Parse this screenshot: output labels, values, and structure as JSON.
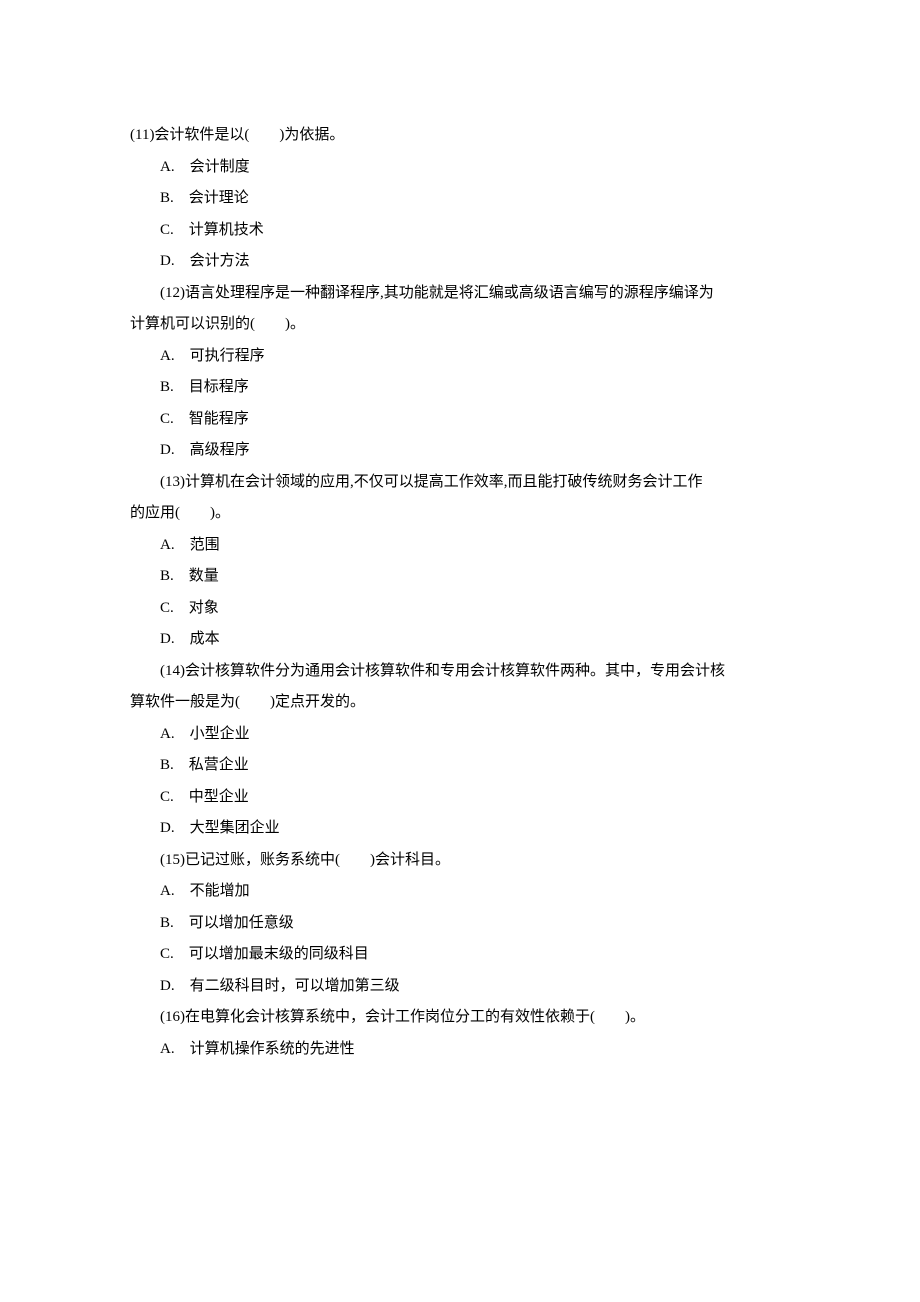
{
  "q11": {
    "stem": "(11)会计软件是以(　　)为依据。",
    "a": "A.　会计制度",
    "b": "B.　会计理论",
    "c": "C.　计算机技术",
    "d": "D.　会计方法"
  },
  "q12": {
    "stem1": "(12)语言处理程序是一种翻译程序,其功能就是将汇编或高级语言编写的源程序编译为",
    "stem2": "计算机可以识别的(　　)。",
    "a": "A.　可执行程序",
    "b": "B.　目标程序",
    "c": "C.　智能程序",
    "d": "D.　高级程序"
  },
  "q13": {
    "stem1": "(13)计算机在会计领域的应用,不仅可以提高工作效率,而且能打破传统财务会计工作",
    "stem2": "的应用(　　)。",
    "a": "A.　范围",
    "b": "B.　数量",
    "c": "C.　对象",
    "d": "D.　成本"
  },
  "q14": {
    "stem1": "(14)会计核算软件分为通用会计核算软件和专用会计核算软件两种。其中，专用会计核",
    "stem2": "算软件一般是为(　　)定点开发的。",
    "a": "A.　小型企业",
    "b": "B.　私营企业",
    "c": "C.　中型企业",
    "d": "D.　大型集团企业"
  },
  "q15": {
    "stem": "(15)已记过账，账务系统中(　　)会计科目。",
    "a": "A.　不能增加",
    "b": "B.　可以增加任意级",
    "c": "C.　可以增加最末级的同级科目",
    "d": "D.　有二级科目时，可以增加第三级"
  },
  "q16": {
    "stem": "(16)在电算化会计核算系统中，会计工作岗位分工的有效性依赖于(　　)。",
    "a": "A.　计算机操作系统的先进性"
  }
}
